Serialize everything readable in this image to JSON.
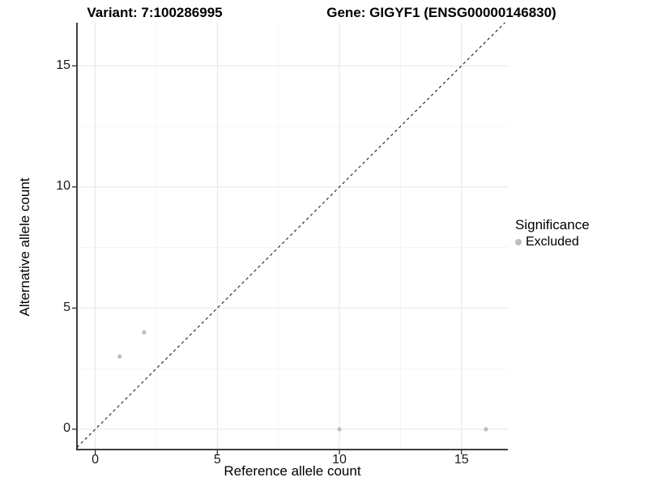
{
  "titles": {
    "left": "Variant: 7:100286995",
    "right": "Gene: GIGYF1 (ENSG00000146830)"
  },
  "chart_data": {
    "type": "scatter",
    "title_left": "Variant: 7:100286995",
    "title_right": "Gene: GIGYF1 (ENSG00000146830)",
    "xlabel": "Reference allele count",
    "ylabel": "Alternative allele count",
    "xlim": [
      -0.75,
      16.9
    ],
    "ylim": [
      -0.84,
      16.78
    ],
    "x_ticks": [
      0,
      5,
      10,
      15
    ],
    "y_ticks": [
      0,
      5,
      10,
      15
    ],
    "x_minor_ticks": [
      2.5,
      7.5,
      12.5
    ],
    "y_minor_ticks": [
      2.5,
      7.5,
      12.5
    ],
    "grid": "on",
    "identity_line": {
      "style": "dashed",
      "equation": "y = x"
    },
    "series": [
      {
        "name": "Excluded",
        "color": "#bdbdbd",
        "point_radius": 2.6,
        "points": [
          {
            "x": 1,
            "y": 3
          },
          {
            "x": 2,
            "y": 4
          },
          {
            "x": 10,
            "y": 0
          },
          {
            "x": 16,
            "y": 0
          }
        ]
      }
    ],
    "legend": {
      "title": "Significance",
      "position": "right",
      "entries": [
        {
          "label": "Excluded",
          "color": "#bdbdbd"
        }
      ]
    }
  },
  "colors": {
    "background": "#ffffff",
    "grid_major": "#e6e6e6",
    "grid_minor": "#f2f2f2",
    "axis_line": "#000000",
    "tick_mark": "#1a1a1a",
    "identity_line": "#1a1a1a",
    "point": "#bdbdbd"
  }
}
